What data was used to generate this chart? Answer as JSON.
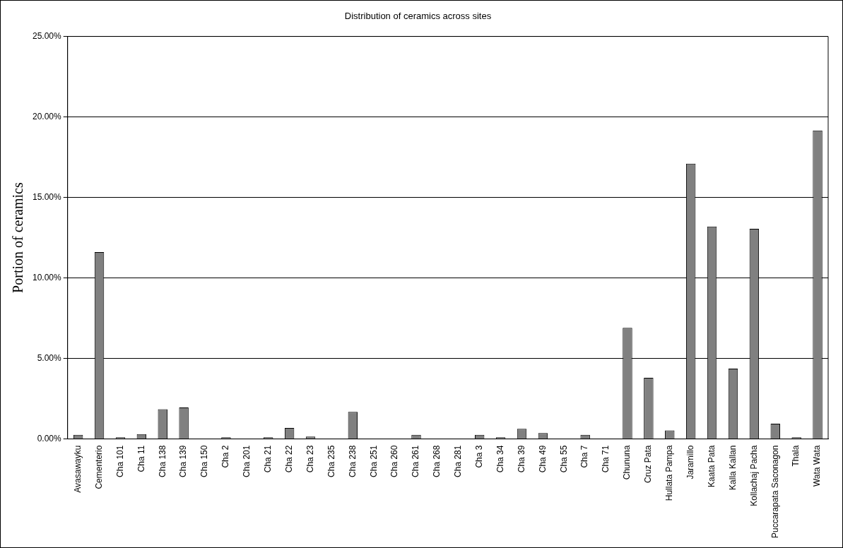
{
  "chart_data": {
    "type": "bar",
    "title": "Distribution of ceramics across sites",
    "ylabel": "Portion of ceramics",
    "categories": [
      "Avasawayku",
      "Cementerio",
      "Cha 101",
      "Cha 11",
      "Cha 138",
      "Cha 139",
      "Cha 150",
      "Cha 2",
      "Cha 201",
      "Cha 21",
      "Cha 22",
      "Cha 23",
      "Cha 235",
      "Cha 238",
      "Cha 251",
      "Cha 260",
      "Cha 261",
      "Cha 268",
      "Cha 281",
      "Cha 3",
      "Cha 34",
      "Cha 39",
      "Cha 49",
      "Cha 55",
      "Cha 7",
      "Cha 71",
      "Chununa",
      "Cruz Pata",
      "Hullata Pampa",
      "Jaramillo",
      "Kaata Pata",
      "Kalla Kallan",
      "Kollachaj Pacha",
      "Puccarapata Saconagon",
      "Thala",
      "Wata Wata"
    ],
    "values": [
      0.26,
      11.6,
      0.1,
      0.3,
      1.84,
      1.95,
      0,
      0.1,
      0,
      0.1,
      0.68,
      0.15,
      0,
      1.68,
      0,
      0,
      0.25,
      0,
      0,
      0.25,
      0.1,
      0.63,
      0.37,
      0,
      0.25,
      0,
      6.9,
      3.8,
      0.53,
      17.1,
      13.2,
      4.37,
      13.05,
      0.95,
      0.1,
      19.16
    ],
    "color": "#808080",
    "ylim": [
      0,
      25
    ],
    "yticks": [
      {
        "value": 0,
        "label": "0.00%"
      },
      {
        "value": 5,
        "label": "5.00%"
      },
      {
        "value": 10,
        "label": "10.00%"
      },
      {
        "value": 15,
        "label": "15.00%"
      },
      {
        "value": 20,
        "label": "20.00%"
      },
      {
        "value": 25,
        "label": "25.00%"
      }
    ],
    "grid": "y",
    "legend": false
  }
}
